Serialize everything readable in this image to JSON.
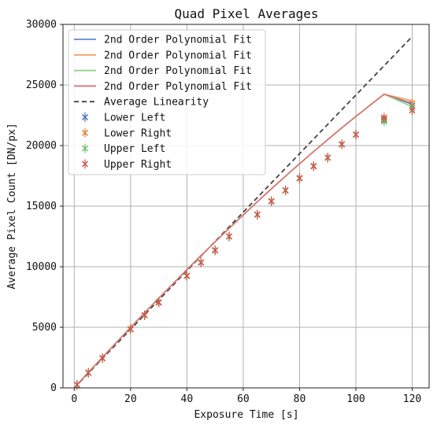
{
  "chart_data": {
    "type": "line",
    "title": "Quad Pixel Averages",
    "xlabel": "Exposure Time [s]",
    "ylabel": "Average Pixel Count [DN/px]",
    "xlim": [
      -4,
      126
    ],
    "ylim": [
      0,
      30000
    ],
    "x_ticks": [
      0,
      20,
      40,
      60,
      80,
      100,
      120
    ],
    "y_ticks": [
      0,
      5000,
      10000,
      15000,
      20000,
      25000,
      30000
    ],
    "grid": true,
    "legend_position": "top-left",
    "x": [
      1,
      5,
      10,
      20,
      25,
      30,
      40,
      45,
      50,
      55,
      65,
      70,
      75,
      80,
      85,
      90,
      95,
      100,
      110,
      120
    ],
    "fits": [
      {
        "name": "2nd Order Polynomial Fit",
        "color": "#5b8bd6",
        "values": [
          260,
          1270,
          2520,
          4990,
          6200,
          7400,
          9760,
          10910,
          12050,
          13170,
          15360,
          16430,
          17470,
          18500,
          19510,
          20490,
          21460,
          22400,
          24240,
          23400
        ]
      },
      {
        "name": "2nd Order Polynomial Fit",
        "color": "#f0a068",
        "values": [
          260,
          1270,
          2520,
          4990,
          6200,
          7400,
          9760,
          10910,
          12050,
          13170,
          15360,
          16430,
          17470,
          18500,
          19510,
          20490,
          21460,
          22400,
          24240,
          23700
        ]
      },
      {
        "name": "2nd Order Polynomial Fit",
        "color": "#88d47e",
        "values": [
          260,
          1270,
          2520,
          4990,
          6200,
          7400,
          9760,
          10910,
          12050,
          13170,
          15360,
          16430,
          17470,
          18500,
          19510,
          20490,
          21460,
          22400,
          24240,
          23200
        ]
      },
      {
        "name": "2nd Order Polynomial Fit",
        "color": "#e07070",
        "values": [
          260,
          1270,
          2520,
          4990,
          6200,
          7400,
          9760,
          10910,
          12050,
          13170,
          15360,
          16430,
          17470,
          18500,
          19510,
          20490,
          21460,
          22400,
          24240,
          23500
        ]
      }
    ],
    "linearity": {
      "name": "Average Linearity",
      "color": "#444444",
      "x": [
        0,
        120
      ],
      "values": [
        0,
        29000
      ]
    },
    "series": [
      {
        "name": "Lower Left",
        "color": "#4a72c4",
        "marker": "x",
        "values": [
          250,
          1250,
          2450,
          4850,
          6000,
          7050,
          9250,
          10350,
          11350,
          12500,
          14300,
          15400,
          16300,
          17300,
          18300,
          19000,
          20100,
          20900,
          22100,
          23300
        ]
      },
      {
        "name": "Lower Right",
        "color": "#e8853a",
        "marker": "x",
        "values": [
          250,
          1250,
          2450,
          4850,
          6000,
          7050,
          9250,
          10350,
          11350,
          12500,
          14300,
          15400,
          16300,
          17300,
          18300,
          19000,
          20100,
          20900,
          22200,
          23500
        ]
      },
      {
        "name": "Upper Left",
        "color": "#6cc466",
        "marker": "x",
        "values": [
          250,
          1250,
          2450,
          4850,
          6000,
          7050,
          9250,
          10350,
          11350,
          12500,
          14300,
          15400,
          16300,
          17300,
          18300,
          19000,
          20100,
          20900,
          22000,
          23100
        ]
      },
      {
        "name": "Upper Right",
        "color": "#cc5a4a",
        "marker": "x",
        "values": [
          250,
          1250,
          2450,
          4850,
          6000,
          7050,
          9250,
          10350,
          11350,
          12500,
          14300,
          15400,
          16300,
          17300,
          18300,
          19000,
          20100,
          20900,
          22300,
          22900
        ]
      }
    ]
  }
}
